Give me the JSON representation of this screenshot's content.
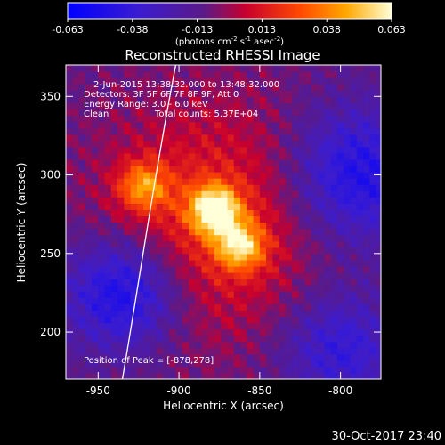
{
  "chart_data": {
    "type": "heatmap",
    "title": "Reconstructed RHESSI Image",
    "xlabel": "Heliocentric X (arcsec)",
    "ylabel": "Heliocentric Y (arcsec)",
    "xlim": [
      -970,
      -775
    ],
    "ylim": [
      170,
      370
    ],
    "x_ticks": [
      -950,
      -900,
      -850,
      -800
    ],
    "y_ticks": [
      200,
      250,
      300,
      350
    ],
    "colorbar": {
      "min": -0.063,
      "max": 0.063,
      "ticks": [
        "-0.063",
        "-0.038",
        "-0.013",
        "0.013",
        "0.038",
        "0.063"
      ],
      "label": "(photons cm",
      "label_exp1": "-2",
      "label_mid": " s",
      "label_exp2": "-1",
      "label_end": " asec",
      "label_exp3": "-2",
      "label_close": ")"
    },
    "annotations": {
      "time_range": "2-Jun-2015 13:38:32.000 to 13:48:32.000",
      "detectors": "Detectors: 3F 5F 6F 7F 8F 9F, Att 0",
      "energy": "Energy Range: 3.0 - 6.0 keV",
      "method": "Clean",
      "counts": "Total counts: 5.37E+04",
      "peak": "Position of Peak = [-878,278]"
    },
    "sources": [
      {
        "x": -878,
        "y": 278,
        "amp": 0.063
      },
      {
        "x": -862,
        "y": 255,
        "amp": 0.048
      },
      {
        "x": -922,
        "y": 293,
        "amp": 0.04
      }
    ],
    "limb_arc": [
      [
        -902,
        370
      ],
      [
        -915,
        300
      ],
      [
        -925,
        230
      ],
      [
        -935,
        170
      ]
    ]
  },
  "footer": {
    "timestamp": "30-Oct-2017 23:40"
  }
}
